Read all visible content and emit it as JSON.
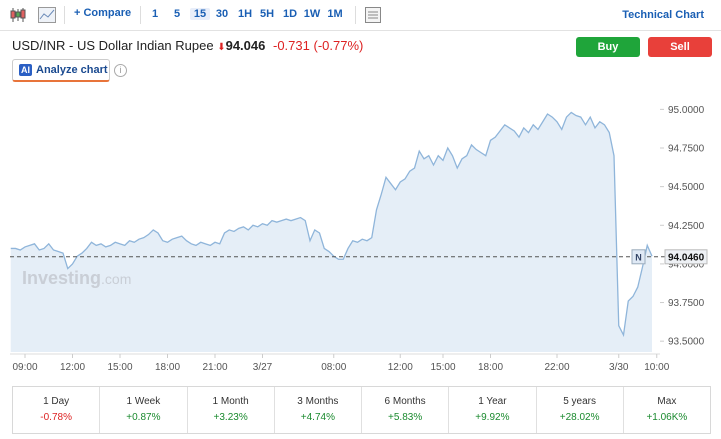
{
  "toolbar": {
    "compare": "Compare",
    "intervals": [
      {
        "label": "1"
      },
      {
        "label": "5"
      },
      {
        "label": "15",
        "selected": true
      },
      {
        "label": "30"
      },
      {
        "label": "1H"
      },
      {
        "label": "5H"
      },
      {
        "label": "1D"
      },
      {
        "label": "1W"
      },
      {
        "label": "1M"
      }
    ],
    "technical": "Technical Chart"
  },
  "header": {
    "title": "USD/INR - US Dollar Indian Rupee",
    "price": "94.046",
    "change": "-0.731",
    "change_pct": "(-0.77%)",
    "buy": "Buy",
    "sell": "Sell",
    "ai_badge": "AI",
    "analyze": "Analyze chart",
    "info": "i"
  },
  "chart_data": {
    "type": "line",
    "color": "#8fb5da",
    "fill": "#e5eef7",
    "watermark": {
      "brand": "Investing",
      "suffix": ".com"
    },
    "categories": [
      null,
      null,
      null,
      "09:00",
      null,
      null,
      null,
      null,
      null,
      null,
      null,
      null,
      null,
      "12:00",
      null,
      null,
      null,
      null,
      null,
      null,
      null,
      null,
      null,
      "15:00",
      null,
      null,
      null,
      null,
      null,
      null,
      null,
      null,
      null,
      "18:00",
      null,
      null,
      null,
      null,
      null,
      null,
      null,
      null,
      null,
      "21:00",
      null,
      null,
      null,
      null,
      null,
      null,
      null,
      null,
      null,
      "3/27",
      null,
      null,
      null,
      null,
      null,
      null,
      null,
      null,
      null,
      null,
      null,
      null,
      null,
      null,
      "08:00",
      null,
      null,
      null,
      null,
      null,
      null,
      null,
      null,
      null,
      null,
      null,
      null,
      null,
      "12:00",
      null,
      null,
      null,
      null,
      null,
      null,
      null,
      null,
      "15:00",
      null,
      null,
      null,
      null,
      null,
      null,
      null,
      null,
      null,
      "18:00",
      null,
      null,
      null,
      null,
      null,
      null,
      null,
      null,
      null,
      null,
      null,
      null,
      null,
      "22:00",
      null,
      null,
      null,
      null,
      null,
      null,
      null,
      null,
      null,
      null,
      null,
      null,
      "3/30",
      null,
      null,
      null,
      null,
      null,
      null,
      null,
      "10:00"
    ],
    "values": [
      94.1,
      94.1,
      94.09,
      94.11,
      94.12,
      94.13,
      94.09,
      94.1,
      94.13,
      94.09,
      94.08,
      94.07,
      93.97,
      94.0,
      94.05,
      94.07,
      94.1,
      94.14,
      94.12,
      94.13,
      94.11,
      94.12,
      94.14,
      94.13,
      94.12,
      94.15,
      94.14,
      94.16,
      94.17,
      94.19,
      94.22,
      94.2,
      94.15,
      94.14,
      94.16,
      94.17,
      94.18,
      94.15,
      94.13,
      94.12,
      94.14,
      94.13,
      94.12,
      94.14,
      94.13,
      94.2,
      94.22,
      94.21,
      94.23,
      94.24,
      94.22,
      94.25,
      94.24,
      94.26,
      94.25,
      94.28,
      94.27,
      94.28,
      94.29,
      94.28,
      94.29,
      94.3,
      94.28,
      94.15,
      94.22,
      94.2,
      94.1,
      94.08,
      94.05,
      94.03,
      94.03,
      94.1,
      94.15,
      94.14,
      94.16,
      94.15,
      94.17,
      94.35,
      94.45,
      94.56,
      94.52,
      94.48,
      94.53,
      94.55,
      94.6,
      94.62,
      94.73,
      94.68,
      94.7,
      94.64,
      94.7,
      94.67,
      94.75,
      94.7,
      94.62,
      94.68,
      94.7,
      94.77,
      94.74,
      94.72,
      94.7,
      94.8,
      94.82,
      94.86,
      94.9,
      94.88,
      94.86,
      94.82,
      94.88,
      94.85,
      94.9,
      94.87,
      94.92,
      94.97,
      94.95,
      94.92,
      94.87,
      94.95,
      94.98,
      94.96,
      94.95,
      94.9,
      94.95,
      94.88,
      94.92,
      94.9,
      94.85,
      94.7,
      93.6,
      93.54,
      93.76,
      93.79,
      93.85,
      93.98,
      94.12,
      94.05,
      null
    ],
    "ylim": [
      93.43,
      95.08
    ],
    "yticks": [
      {
        "value": 93.5,
        "label": "93.5000"
      },
      {
        "value": 93.75,
        "label": "93.7500"
      },
      {
        "value": 94,
        "label": "94.0000"
      },
      {
        "value": 94.25,
        "label": "94.2500"
      },
      {
        "value": 94.5,
        "label": "94.5000"
      },
      {
        "value": 94.75,
        "label": "94.7500"
      },
      {
        "value": 95,
        "label": "95.0000"
      }
    ],
    "last_price": {
      "value": 94.046,
      "label": "94.0460"
    },
    "news_marker": "N"
  },
  "performance": [
    {
      "period": "1 Day",
      "change": "-0.78%"
    },
    {
      "period": "1 Week",
      "change": "+0.87%"
    },
    {
      "period": "1 Month",
      "change": "+3.23%"
    },
    {
      "period": "3 Months",
      "change": "+4.74%"
    },
    {
      "period": "6 Months",
      "change": "+5.83%"
    },
    {
      "period": "1 Year",
      "change": "+9.92%"
    },
    {
      "period": "5 years",
      "change": "+28.02%"
    },
    {
      "period": "Max",
      "change": "+1.06K%"
    }
  ]
}
